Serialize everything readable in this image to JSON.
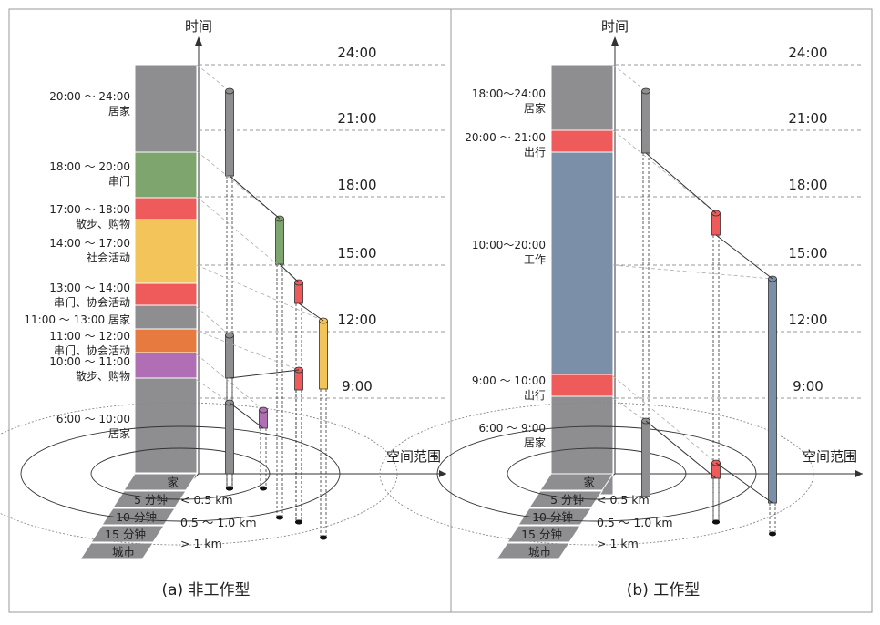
{
  "axes": {
    "time_label": "时间",
    "space_label": "空间范围",
    "ticks": [
      "24:00",
      "21:00",
      "18:00",
      "15:00",
      "12:00",
      "9:00"
    ]
  },
  "distance_labels": [
    "< 0.5 km",
    "0.5 ～ 1.0 km",
    "> 1 km"
  ],
  "ground_bands": [
    "家",
    "5 分钟",
    "10 分钟",
    "15 分钟",
    "城市"
  ],
  "panels": [
    {
      "caption": "(a) 非工作型",
      "segments": [
        {
          "lines": [
            "20:00 ～ 24:00",
            "居家"
          ],
          "color": "#8e8e90"
        },
        {
          "lines": [
            "18:00 ～ 20:00",
            "串门"
          ],
          "color": "#7fa56f"
        },
        {
          "lines": [
            "17:00 ～ 18:00",
            "散步、购物"
          ],
          "color": "#ef5a5a"
        },
        {
          "lines": [
            "14:00 ～ 17:00",
            "社会活动"
          ],
          "color": "#f2c45a"
        },
        {
          "lines": [
            "13:00 ～ 14:00",
            "串门、协会活动"
          ],
          "color": "#ef5a5a"
        },
        {
          "lines": [
            "11:00 ～ 13:00 居家"
          ],
          "color": "#8e8e90"
        },
        {
          "lines": [
            "11:00 ～ 12:00",
            "串门、协会活动"
          ],
          "color": "#e77b3f"
        },
        {
          "lines": [
            "10:00 ～ 11:00",
            "散步、购物"
          ],
          "color": "#b06fb4"
        },
        {
          "lines": [
            "6:00 ～ 10:00",
            "居家"
          ],
          "color": "#8e8e90"
        }
      ]
    },
    {
      "caption": "(b) 工作型",
      "segments": [
        {
          "lines": [
            "18:00～24:00",
            "居家"
          ],
          "color": "#8e8e90"
        },
        {
          "lines": [
            "20:00 ～ 21:00",
            "出行"
          ],
          "color": "#ef5a5a"
        },
        {
          "lines": [
            "10:00～20:00",
            "工作"
          ],
          "color": "#7b90a8"
        },
        {
          "lines": [
            "9:00 ～ 10:00",
            "出行"
          ],
          "color": "#ef5a5a"
        },
        {
          "lines": [
            "6:00 ～ 9:00",
            "居家"
          ],
          "color": "#8e8e90"
        }
      ]
    }
  ]
}
